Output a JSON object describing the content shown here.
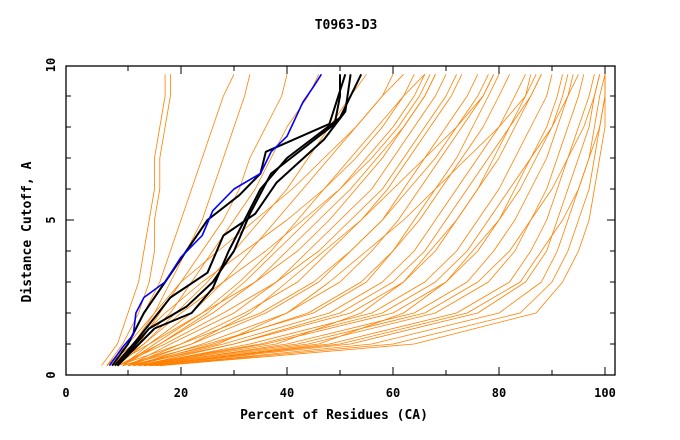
{
  "chart_data": {
    "type": "line",
    "title": "T0963-D3",
    "xlabel": "Percent of Residues (CA)",
    "ylabel": "Distance Cutoff, A",
    "xlim": [
      0,
      100
    ],
    "ylim": [
      0,
      10
    ],
    "x_ticks": [
      "0",
      "20",
      "40",
      "60",
      "80",
      "100"
    ],
    "y_ticks": [
      "0",
      "5",
      "10"
    ],
    "grid": false,
    "colors": {
      "models": "#ff8000",
      "highlight": "#0000ff",
      "reference": "#000000"
    },
    "orange_y_levels": [
      0.3,
      1,
      2,
      3,
      4,
      5,
      6,
      7,
      8,
      9,
      9.7
    ],
    "orange_series_x": [
      [
        5,
        8,
        10,
        12,
        13,
        14,
        15,
        15,
        16,
        17,
        17
      ],
      [
        6,
        9,
        12,
        14,
        15,
        15,
        16,
        16,
        17,
        18,
        18
      ],
      [
        6,
        10,
        13,
        16,
        18,
        20,
        22,
        24,
        26,
        28,
        30
      ],
      [
        7,
        11,
        15,
        18,
        21,
        24,
        26,
        28,
        30,
        32,
        33
      ],
      [
        7,
        12,
        16,
        20,
        24,
        28,
        31,
        33,
        36,
        39,
        40
      ],
      [
        8,
        12,
        18,
        22,
        26,
        30,
        34,
        37,
        40,
        44,
        46
      ],
      [
        8,
        13,
        19,
        25,
        30,
        35,
        40,
        44,
        48,
        52,
        55
      ],
      [
        9,
        14,
        22,
        28,
        33,
        38,
        43,
        48,
        53,
        58,
        62
      ],
      [
        9,
        15,
        24,
        31,
        37,
        42,
        47,
        52,
        57,
        62,
        66
      ],
      [
        9,
        16,
        26,
        34,
        40,
        46,
        52,
        57,
        62,
        66,
        68
      ],
      [
        10,
        18,
        30,
        38,
        44,
        50,
        56,
        60,
        64,
        68,
        70
      ],
      [
        10,
        20,
        32,
        42,
        48,
        54,
        59,
        63,
        67,
        71,
        73
      ],
      [
        10,
        22,
        36,
        46,
        52,
        58,
        62,
        66,
        70,
        74,
        76
      ],
      [
        11,
        24,
        40,
        50,
        56,
        61,
        65,
        69,
        73,
        77,
        79
      ],
      [
        11,
        26,
        44,
        54,
        60,
        65,
        69,
        73,
        77,
        80,
        82
      ],
      [
        11,
        28,
        48,
        58,
        64,
        68,
        72,
        76,
        80,
        83,
        85
      ],
      [
        12,
        30,
        52,
        62,
        68,
        72,
        76,
        80,
        83,
        86,
        88
      ],
      [
        12,
        33,
        56,
        66,
        72,
        76,
        80,
        83,
        86,
        89,
        90
      ],
      [
        12,
        36,
        60,
        70,
        76,
        80,
        83,
        86,
        89,
        91,
        92
      ],
      [
        13,
        40,
        64,
        74,
        79,
        83,
        86,
        89,
        91,
        93,
        94
      ],
      [
        13,
        44,
        68,
        78,
        83,
        86,
        89,
        91,
        93,
        95,
        96
      ],
      [
        14,
        48,
        72,
        82,
        86,
        89,
        91,
        93,
        95,
        97,
        98
      ],
      [
        14,
        52,
        76,
        85,
        89,
        91,
        93,
        95,
        97,
        98,
        99
      ],
      [
        15,
        56,
        80,
        88,
        91,
        93,
        95,
        97,
        98,
        99,
        100
      ],
      [
        15,
        60,
        84,
        90,
        93,
        95,
        97,
        98,
        99,
        100,
        100
      ],
      [
        16,
        64,
        87,
        92,
        95,
        97,
        98,
        99,
        100,
        100,
        100
      ],
      [
        10,
        30,
        50,
        60,
        66,
        70,
        74,
        78,
        82,
        86,
        88
      ],
      [
        9,
        25,
        45,
        55,
        60,
        64,
        68,
        72,
        75,
        78,
        80
      ],
      [
        8,
        20,
        35,
        45,
        52,
        58,
        63,
        68,
        72,
        76,
        78
      ],
      [
        8,
        17,
        28,
        38,
        46,
        52,
        58,
        62,
        66,
        70,
        72
      ],
      [
        7,
        14,
        24,
        34,
        42,
        48,
        53,
        58,
        62,
        66,
        68
      ],
      [
        7,
        13,
        20,
        28,
        36,
        43,
        50,
        56,
        61,
        65,
        67
      ],
      [
        6,
        11,
        17,
        24,
        32,
        40,
        47,
        53,
        58,
        62,
        64
      ],
      [
        6,
        10,
        15,
        20,
        27,
        34,
        41,
        47,
        53,
        58,
        60
      ],
      [
        11,
        35,
        58,
        68,
        74,
        78,
        82,
        86,
        90,
        93,
        95
      ],
      [
        12,
        42,
        66,
        76,
        82,
        86,
        90,
        93,
        96,
        98,
        99
      ],
      [
        13,
        50,
        74,
        84,
        88,
        92,
        95,
        97,
        99,
        100,
        100
      ],
      [
        10,
        27,
        40,
        48,
        55,
        62,
        68,
        74,
        80,
        85,
        87
      ],
      [
        9,
        22,
        33,
        40,
        47,
        54,
        60,
        66,
        72,
        77,
        79
      ],
      [
        8,
        16,
        25,
        32,
        38,
        44,
        50,
        55,
        60,
        64,
        66
      ],
      [
        12,
        38,
        54,
        62,
        67,
        72,
        76,
        79,
        82,
        85,
        86
      ],
      [
        14,
        46,
        62,
        70,
        75,
        80,
        84,
        87,
        90,
        92,
        93
      ]
    ],
    "highlight_series": {
      "x": [
        6.5,
        9,
        11,
        11.5,
        13,
        17,
        20,
        24,
        26,
        30,
        35,
        37,
        40,
        43,
        45,
        46.5
      ],
      "y": [
        0.3,
        0.9,
        1.3,
        2,
        2.5,
        3,
        3.8,
        4.5,
        5.3,
        6,
        6.5,
        7.2,
        7.7,
        8.8,
        9.3,
        9.7
      ]
    },
    "reference_series": [
      {
        "x": [
          7,
          10,
          13,
          17,
          25,
          31,
          35,
          36,
          48,
          51
        ],
        "y": [
          0.3,
          1,
          2,
          3,
          5,
          5.8,
          6.5,
          7.2,
          8.1,
          9.7
        ]
      },
      {
        "x": [
          7.5,
          12,
          18,
          25,
          28,
          34,
          38,
          47,
          51,
          52
        ],
        "y": [
          0.3,
          1.2,
          2.5,
          3.3,
          4.5,
          5.2,
          6.2,
          7.6,
          8.5,
          9.7
        ]
      },
      {
        "x": [
          8,
          14,
          21,
          26,
          30,
          33,
          37,
          49,
          50,
          50
        ],
        "y": [
          0.3,
          1.5,
          2.2,
          3,
          4,
          5.2,
          6.5,
          8.1,
          9,
          9.7
        ]
      },
      {
        "x": [
          8,
          15,
          22,
          26,
          29,
          35,
          40,
          50,
          54
        ],
        "y": [
          0.3,
          1.5,
          2,
          2.8,
          4,
          6,
          7,
          8.3,
          9.7
        ]
      }
    ]
  }
}
